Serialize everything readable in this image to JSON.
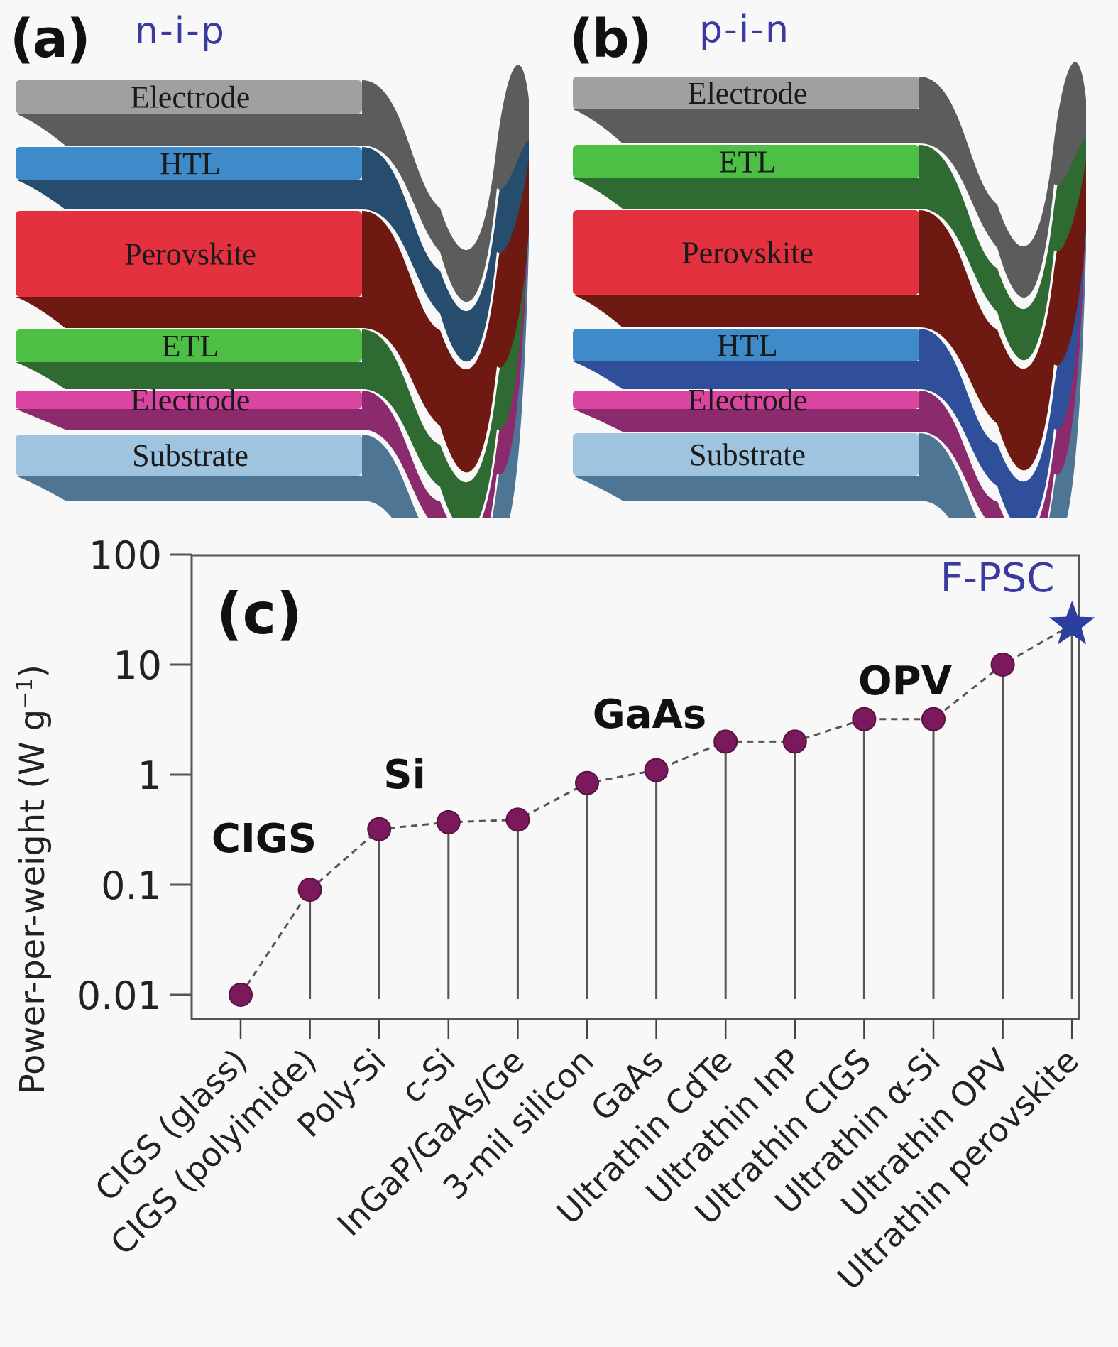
{
  "panels": {
    "a": {
      "label": "(a)",
      "config": "n-i-p",
      "layers": [
        {
          "name": "Electrode",
          "color": "#a0a0a0",
          "dark": "#5c5c5c"
        },
        {
          "name": "HTL",
          "color": "#3f8ac9",
          "dark": "#264c6e"
        },
        {
          "name": "Perovskite",
          "color": "#e3313f",
          "dark": "#6e1a12"
        },
        {
          "name": "ETL",
          "color": "#4dbf45",
          "dark": "#2f6a33"
        },
        {
          "name": "Electrode",
          "color": "#d945a0",
          "dark": "#8c2a6e"
        },
        {
          "name": "Substrate",
          "color": "#9fc4e0",
          "dark": "#4f7595"
        }
      ]
    },
    "b": {
      "label": "(b)",
      "config": "p-i-n",
      "layers": [
        {
          "name": "Electrode",
          "color": "#a0a0a0",
          "dark": "#5c5c5c"
        },
        {
          "name": "ETL",
          "color": "#4dbf45",
          "dark": "#2f6a33"
        },
        {
          "name": "Perovskite",
          "color": "#e3313f",
          "dark": "#6e1a12"
        },
        {
          "name": "HTL",
          "color": "#3f8ac9",
          "dark": "#2f4f9a"
        },
        {
          "name": "Electrode",
          "color": "#d945a0",
          "dark": "#8c2a6e"
        },
        {
          "name": "Substrate",
          "color": "#9fc4e0",
          "dark": "#4f7595"
        }
      ]
    }
  },
  "chart_data": {
    "type": "scatter",
    "panel_label": "(c)",
    "title": "",
    "xlabel": "",
    "ylabel": "Power-per-weight (W g⁻¹)",
    "ylabel_main": "Power-per-weight (W g",
    "ylabel_sup": "−1",
    "ylabel_close": ")",
    "yscale": "log",
    "ylim": [
      0.01,
      100
    ],
    "yticks": [
      100,
      10,
      1,
      0.1,
      0.01
    ],
    "ytick_labels": [
      "100",
      "10",
      "1",
      "0.1",
      "0.01"
    ],
    "grid": false,
    "categories": [
      "CIGS (glass)",
      "CIGS (polyimide)",
      "Poly-Si",
      "c-Si",
      "InGaP/GaAs/Ge",
      "3-mil silicon",
      "GaAs",
      "Ultrathin CdTe",
      "Ultrathin InP",
      "Ultrathin CIGS",
      "Ultrathin α-Si",
      "Ultrathin OPV",
      "Ultrathin perovskite"
    ],
    "values": [
      0.01,
      0.09,
      0.32,
      0.37,
      0.39,
      0.84,
      1.1,
      2.0,
      2.0,
      3.2,
      3.2,
      10,
      23
    ],
    "markers": [
      "circle",
      "circle",
      "circle",
      "circle",
      "circle",
      "circle",
      "circle",
      "circle",
      "circle",
      "circle",
      "circle",
      "circle",
      "star"
    ],
    "marker_color": "#7a1a5c",
    "star_color": "#2c3f9e",
    "connector": "dashed",
    "annotations": [
      {
        "text": "CIGS",
        "near": "CIGS (polyimide)",
        "color": "#111111"
      },
      {
        "text": "Si",
        "near": "Poly-Si",
        "color": "#111111"
      },
      {
        "text": "GaAs",
        "near": "GaAs",
        "color": "#111111"
      },
      {
        "text": "OPV",
        "near": "Ultrathin OPV",
        "color": "#111111"
      },
      {
        "text": "F-PSC",
        "near": "Ultrathin perovskite",
        "color": "#3a3aa0"
      }
    ]
  }
}
